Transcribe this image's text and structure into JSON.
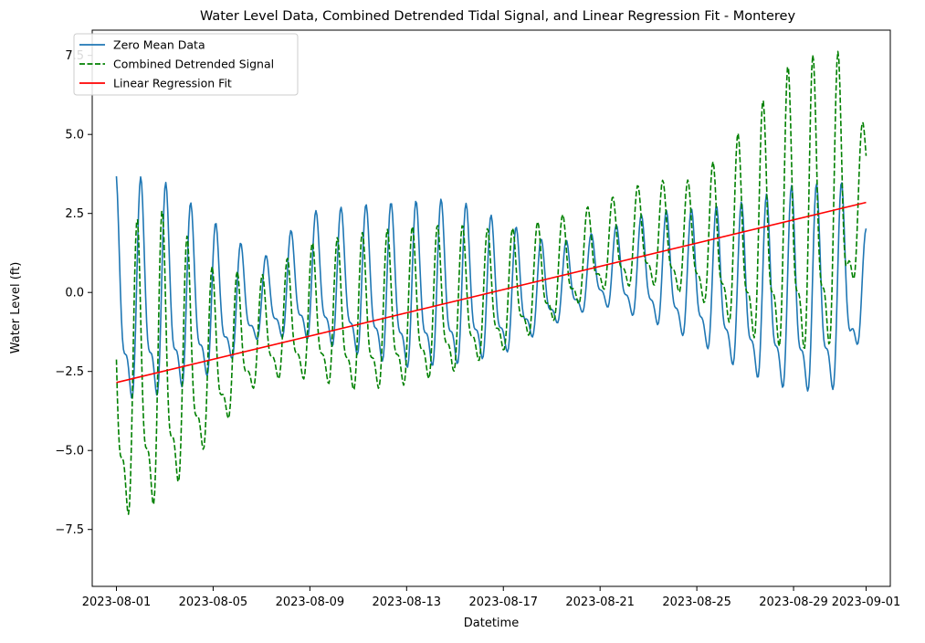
{
  "chart_data": {
    "type": "line",
    "title": "Water Level Data, Combined Detrended Tidal Signal, and Linear Regression Fit - Monterey",
    "xlabel": "Datetime",
    "ylabel": "Water Level (ft)",
    "x_type": "date",
    "x_range": [
      "2023-08-01",
      "2023-09-01"
    ],
    "xlim": [
      "2023-07-31T00:00",
      "2023-09-02T00:00"
    ],
    "ylim": [
      -9.3,
      8.3
    ],
    "x_ticks": [
      "2023-08-01",
      "2023-08-05",
      "2023-08-09",
      "2023-08-13",
      "2023-08-17",
      "2023-08-21",
      "2023-08-25",
      "2023-08-29",
      "2023-09-01"
    ],
    "y_ticks": [
      7.5,
      5.0,
      2.5,
      0.0,
      -2.5,
      -5.0,
      -7.5
    ],
    "y_tick_labels": [
      "7.5",
      "5.0",
      "2.5",
      "0.0",
      "−2.5",
      "−5.0",
      "−7.5"
    ],
    "grid": false,
    "legend_position": "top-left",
    "series": [
      {
        "name": "Zero Mean Data",
        "style": "solid",
        "color": "#1f77b4",
        "peak_envelope": [
          {
            "x": "2023-08-01",
            "high": 3.7,
            "low": -4.7
          },
          {
            "x": "2023-08-03",
            "high": 3.4,
            "low": -4.4
          },
          {
            "x": "2023-08-05",
            "high": 2.2,
            "low": -3.4
          },
          {
            "x": "2023-08-07",
            "high": 1.0,
            "low": -1.8
          },
          {
            "x": "2023-08-09",
            "high": 2.5,
            "low": -2.2
          },
          {
            "x": "2023-08-11",
            "high": 2.7,
            "low": -2.8
          },
          {
            "x": "2023-08-13",
            "high": 2.8,
            "low": -3.3
          },
          {
            "x": "2023-08-15",
            "high": 2.9,
            "low": -3.2
          },
          {
            "x": "2023-08-17",
            "high": 2.2,
            "low": -2.7
          },
          {
            "x": "2023-08-19",
            "high": 1.5,
            "low": -1.5
          },
          {
            "x": "2023-08-21",
            "high": 1.9,
            "low": -0.8
          },
          {
            "x": "2023-08-23",
            "high": 2.5,
            "low": -1.5
          },
          {
            "x": "2023-08-25",
            "high": 2.6,
            "low": -2.3
          },
          {
            "x": "2023-08-27",
            "high": 2.8,
            "low": -3.5
          },
          {
            "x": "2023-08-29",
            "high": 3.3,
            "low": -4.3
          },
          {
            "x": "2023-08-31",
            "high": 3.4,
            "low": -4.2
          },
          {
            "x": "2023-09-01",
            "high": 2.0,
            "low": -1.4
          }
        ]
      },
      {
        "name": "Combined Detrended Signal",
        "style": "dashed",
        "color": "#008000",
        "peak_envelope": [
          {
            "x": "2023-08-01",
            "high": 2.0,
            "low": -8.8
          },
          {
            "x": "2023-08-03",
            "high": 2.5,
            "low": -8.2
          },
          {
            "x": "2023-08-05",
            "high": 0.7,
            "low": -5.5
          },
          {
            "x": "2023-08-07",
            "high": 0.5,
            "low": -3.3
          },
          {
            "x": "2023-08-09",
            "high": 1.5,
            "low": -3.5
          },
          {
            "x": "2023-08-11",
            "high": 1.8,
            "low": -4.0
          },
          {
            "x": "2023-08-13",
            "high": 2.0,
            "low": -3.8
          },
          {
            "x": "2023-08-15",
            "high": 2.1,
            "low": -3.3
          },
          {
            "x": "2023-08-17",
            "high": 1.9,
            "low": -2.5
          },
          {
            "x": "2023-08-19",
            "high": 2.3,
            "low": -1.5
          },
          {
            "x": "2023-08-21",
            "high": 2.8,
            "low": -0.4
          },
          {
            "x": "2023-08-23",
            "high": 3.5,
            "low": -0.3
          },
          {
            "x": "2023-08-25",
            "high": 3.5,
            "low": -0.8
          },
          {
            "x": "2023-08-27",
            "high": 5.2,
            "low": -2.5
          },
          {
            "x": "2023-08-29",
            "high": 7.3,
            "low": -3.5
          },
          {
            "x": "2023-08-31",
            "high": 7.5,
            "low": -3.2
          },
          {
            "x": "2023-09-01",
            "high": 5.0,
            "low": 2.0
          }
        ]
      },
      {
        "name": "Linear Regression Fit",
        "style": "solid",
        "color": "#ff0000",
        "points": [
          {
            "x": "2023-08-01",
            "y": -2.85
          },
          {
            "x": "2023-09-01",
            "y": 2.85
          }
        ]
      }
    ]
  }
}
